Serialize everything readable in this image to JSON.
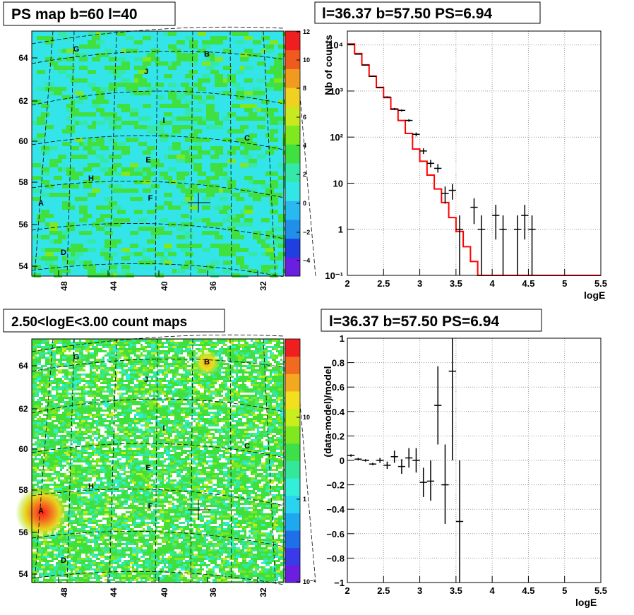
{
  "panels": {
    "tl_title": "PS map b=60 l=40",
    "tr_title": "l=36.37 b=57.50 PS=6.94",
    "bl_title": "2.50<logE<3.00 count maps",
    "br_title": "l=36.37 b=57.50 PS=6.94"
  },
  "maps": {
    "x_ticks": [
      "48",
      "44",
      "40",
      "36",
      "32"
    ],
    "y_ticks": [
      "64",
      "62",
      "60",
      "58",
      "56",
      "54"
    ],
    "source_labels": [
      "A",
      "B",
      "C",
      "D",
      "E",
      "F",
      "G",
      "H",
      "I",
      "J"
    ],
    "ps_colorbar_ticks": [
      "12",
      "10",
      "8",
      "6",
      "4",
      "2",
      "0",
      "−2",
      "−4"
    ],
    "count_colorbar_ticks": [
      "10",
      "1",
      "10⁻¹"
    ],
    "ps_colors": [
      "#6a1fe0",
      "#1f3fe0",
      "#1f8fe8",
      "#2ab8f0",
      "#33e6e6",
      "#35e8a8",
      "#40e040",
      "#7fe81f",
      "#c8e81f",
      "#f0d020",
      "#f09a1f",
      "#f05a1f",
      "#f01f1f"
    ],
    "count_colors": [
      "#6a1fe0",
      "#3a3ae8",
      "#1f70e8",
      "#1fa8f0",
      "#2ad4f0",
      "#33eed8",
      "#33e89a",
      "#3ee04a",
      "#7fe81f",
      "#c8ee1f",
      "#f2e01f",
      "#f2a81f",
      "#f26a1f",
      "#f01f1f"
    ]
  },
  "chart_data": [
    {
      "type": "histogram",
      "title": "l=36.37 b=57.50 PS=6.94",
      "xlabel": "logE",
      "ylabel": "Nb of counts",
      "yscale": "log",
      "xlim": [
        2,
        5.5
      ],
      "ylim": [
        0.1,
        20000
      ],
      "grid": true,
      "x_ticks": [
        "2",
        "2.5",
        "3",
        "3.5",
        "4",
        "4.5",
        "5",
        "5.5"
      ],
      "y_ticks": [
        "10⁻¹",
        "1",
        "10",
        "10²",
        "10³",
        "10⁴"
      ],
      "model_color": "#ff0000",
      "model_bins": [
        2.0,
        2.1,
        2.2,
        2.3,
        2.4,
        2.5,
        2.6,
        2.7,
        2.8,
        2.9,
        3.0,
        3.1,
        3.2,
        3.3,
        3.4,
        3.5,
        3.6,
        3.7,
        3.8,
        3.9,
        4.0,
        4.1,
        4.2,
        4.3,
        4.4,
        4.5,
        4.6,
        4.7,
        4.8,
        4.9,
        5.0,
        5.1,
        5.2,
        5.3,
        5.4,
        5.5
      ],
      "model_values": [
        10500,
        6500,
        3700,
        2100,
        1200,
        720,
        400,
        230,
        120,
        55,
        30,
        15,
        7.5,
        3.8,
        1.8,
        0.9,
        0.42,
        0.2,
        0.1,
        0.1,
        0.1,
        0.1,
        0.1,
        0.1,
        0.1,
        0.1,
        0.1,
        0.1,
        0.1,
        0.1,
        0.1,
        0.1,
        0.1,
        0.1,
        0.1
      ],
      "data_points": [
        {
          "x": 2.05,
          "y": 10200,
          "lo": 10100,
          "hi": 10300
        },
        {
          "x": 2.15,
          "y": 6300,
          "lo": 6220,
          "hi": 6380
        },
        {
          "x": 2.25,
          "y": 3650,
          "lo": 3590,
          "hi": 3710
        },
        {
          "x": 2.35,
          "y": 2080,
          "lo": 2035,
          "hi": 2125
        },
        {
          "x": 2.45,
          "y": 1180,
          "lo": 1145,
          "hi": 1215
        },
        {
          "x": 2.55,
          "y": 740,
          "lo": 713,
          "hi": 767
        },
        {
          "x": 2.65,
          "y": 410,
          "lo": 390,
          "hi": 430
        },
        {
          "x": 2.75,
          "y": 380,
          "lo": 360,
          "hi": 400
        },
        {
          "x": 2.85,
          "y": 230,
          "lo": 215,
          "hi": 245
        },
        {
          "x": 2.95,
          "y": 115,
          "lo": 104,
          "hi": 126
        },
        {
          "x": 3.05,
          "y": 50,
          "lo": 43,
          "hi": 57
        },
        {
          "x": 3.15,
          "y": 27,
          "lo": 22,
          "hi": 32
        },
        {
          "x": 3.25,
          "y": 21,
          "lo": 17,
          "hi": 26
        },
        {
          "x": 3.35,
          "y": 6,
          "lo": 3.6,
          "hi": 8.5
        },
        {
          "x": 3.45,
          "y": 7,
          "lo": 4.4,
          "hi": 9.6
        },
        {
          "x": 3.55,
          "y": 1,
          "lo": 0.1,
          "hi": 2
        },
        {
          "x": 3.75,
          "y": 3,
          "lo": 1.3,
          "hi": 4.7
        },
        {
          "x": 3.85,
          "y": 1,
          "lo": 0.1,
          "hi": 2
        },
        {
          "x": 4.05,
          "y": 2,
          "lo": 0.6,
          "hi": 3.4
        },
        {
          "x": 4.15,
          "y": 1,
          "lo": 0.1,
          "hi": 2
        },
        {
          "x": 4.35,
          "y": 1,
          "lo": 0.1,
          "hi": 2
        },
        {
          "x": 4.45,
          "y": 2,
          "lo": 0.6,
          "hi": 3.4
        },
        {
          "x": 4.55,
          "y": 1,
          "lo": 0.1,
          "hi": 2
        }
      ]
    },
    {
      "type": "scatter",
      "title": "l=36.37 b=57.50 PS=6.94",
      "xlabel": "logE",
      "ylabel": "(data-model)/model",
      "xlim": [
        2,
        5.5
      ],
      "ylim": [
        -1,
        1
      ],
      "grid": true,
      "x_ticks": [
        "2",
        "2.5",
        "3",
        "3.5",
        "4",
        "4.5",
        "5",
        "5.5"
      ],
      "y_ticks": [
        "−1",
        "−0.8",
        "−0.6",
        "−0.4",
        "−0.2",
        "0",
        "0.2",
        "0.4",
        "0.6",
        "0.8",
        "1"
      ],
      "points": [
        {
          "x": 2.05,
          "y": 0.04,
          "lo": 0.03,
          "hi": 0.05
        },
        {
          "x": 2.15,
          "y": 0.01,
          "lo": 0.0,
          "hi": 0.02
        },
        {
          "x": 2.25,
          "y": 0.0,
          "lo": -0.01,
          "hi": 0.01
        },
        {
          "x": 2.35,
          "y": -0.03,
          "lo": -0.04,
          "hi": -0.02
        },
        {
          "x": 2.45,
          "y": 0.0,
          "lo": -0.02,
          "hi": 0.02
        },
        {
          "x": 2.55,
          "y": -0.04,
          "lo": -0.07,
          "hi": -0.01
        },
        {
          "x": 2.65,
          "y": 0.03,
          "lo": -0.02,
          "hi": 0.08
        },
        {
          "x": 2.75,
          "y": -0.05,
          "lo": -0.11,
          "hi": 0.01
        },
        {
          "x": 2.85,
          "y": 0.02,
          "lo": -0.06,
          "hi": 0.1
        },
        {
          "x": 2.95,
          "y": 0.0,
          "lo": -0.1,
          "hi": 0.1
        },
        {
          "x": 3.05,
          "y": -0.18,
          "lo": -0.3,
          "hi": -0.06
        },
        {
          "x": 3.15,
          "y": -0.17,
          "lo": -0.33,
          "hi": 0.0
        },
        {
          "x": 3.25,
          "y": 0.45,
          "lo": 0.13,
          "hi": 0.77
        },
        {
          "x": 3.35,
          "y": -0.2,
          "lo": -0.52,
          "hi": 0.13
        },
        {
          "x": 3.45,
          "y": 0.73,
          "lo": 0.0,
          "hi": 1.0
        },
        {
          "x": 3.55,
          "y": -0.5,
          "lo": -1.0,
          "hi": 0.0
        }
      ]
    }
  ]
}
